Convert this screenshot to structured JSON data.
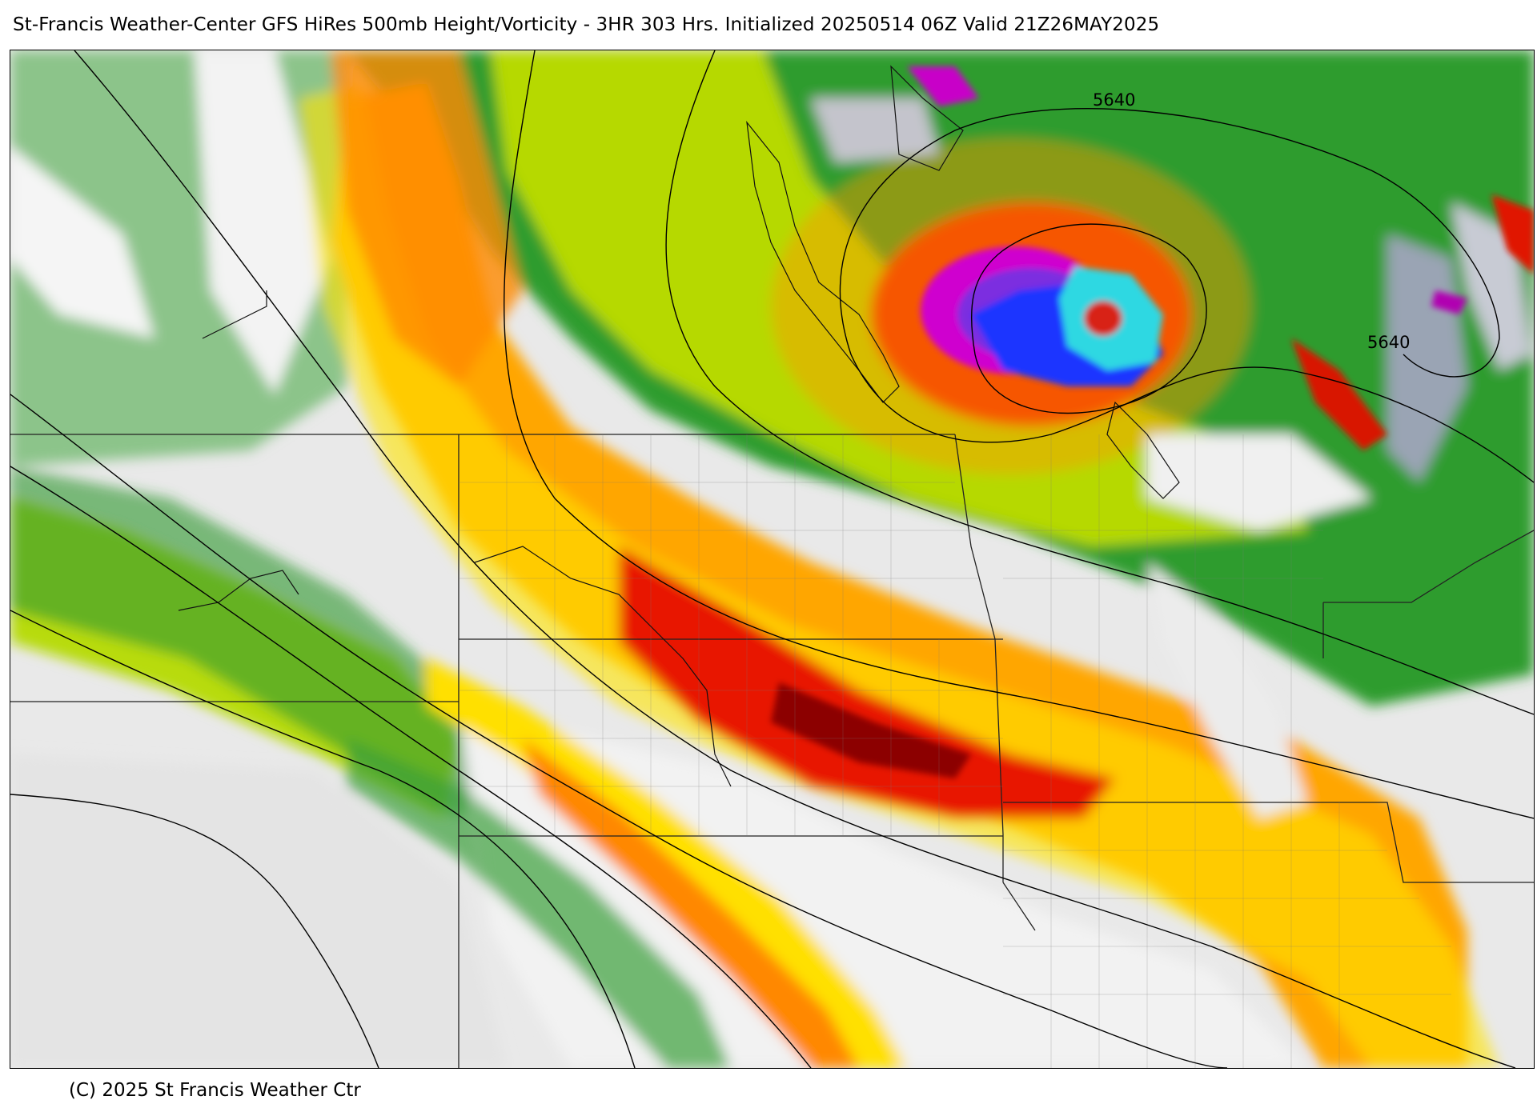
{
  "header": {
    "title": "St-Francis Weather-Center GFS HiRes 500mb Height/Vorticity - 3HR  303 Hrs.  Initialized 20250514 06Z Valid 21Z26MAY2025"
  },
  "map": {
    "contours": [
      {
        "label": "5640"
      },
      {
        "label": "5640"
      }
    ],
    "palette": {
      "low": "#ffffff",
      "gray": "#d9d9d9",
      "dark_gray": "#8f99aa",
      "light_green": "#a8d4a0",
      "green": "#2e9a2e",
      "dark_green": "#137d13",
      "yellow_green": "#b8dc00",
      "yellow": "#ffee00",
      "orange": "#ff9a00",
      "red": "#e61a00",
      "dark_red": "#990000",
      "magenta": "#d400d4",
      "purple": "#8a2be2",
      "blue": "#1e3cff",
      "cyan": "#2ad8e0"
    }
  },
  "footer": {
    "copyright": "(C) 2025 St Francis Weather Ctr"
  }
}
